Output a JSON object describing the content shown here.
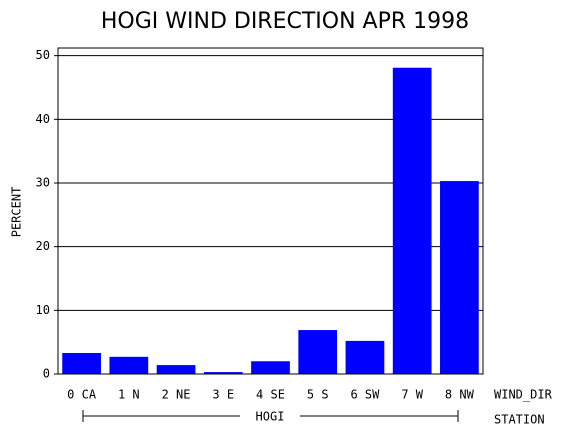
{
  "chart_data": {
    "type": "bar",
    "title": "HOGI WIND DIRECTION APR 1998",
    "y_label": "PERCENT",
    "x_label": "WIND_DIR",
    "group_axis_label": "STATION",
    "group": "HOGI",
    "categories": [
      "0 CA",
      "1 N",
      "2 NE",
      "3 E",
      "4 SE",
      "5 S",
      "6 SW",
      "7 W",
      "8 NW"
    ],
    "values": [
      3.3,
      2.7,
      1.4,
      0.3,
      2.0,
      6.9,
      5.2,
      48.1,
      30.3
    ],
    "color": "#0000ff",
    "ylim": [
      0,
      51.2
    ],
    "yticks": [
      0,
      10,
      20,
      30,
      40,
      50
    ],
    "grid": true
  }
}
